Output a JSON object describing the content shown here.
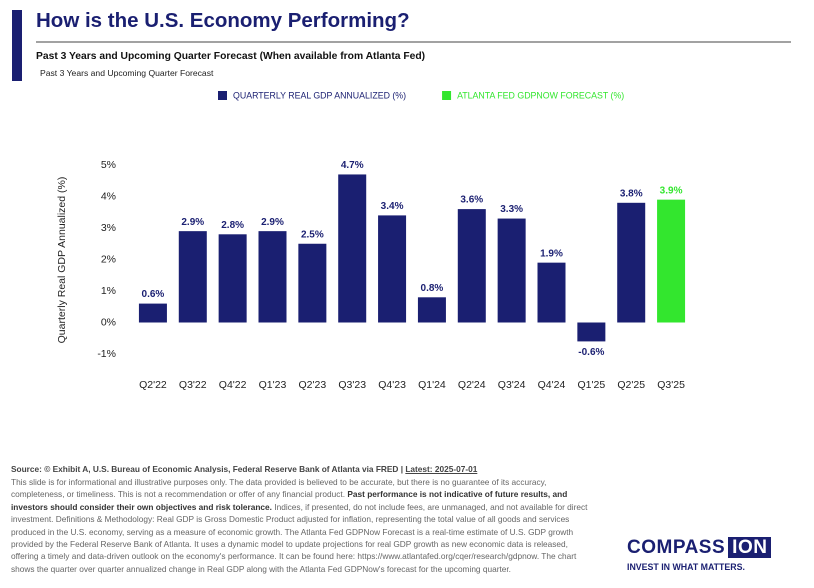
{
  "header": {
    "title": "How is the U.S. Economy Performing?",
    "subtitle": "Past 3 Years and Upcoming Quarter Forecast (When available from Atlanta Fed)",
    "note": "Past 3 Years and Upcoming Quarter Forecast"
  },
  "chart_data": {
    "type": "bar",
    "y_label": "Quarterly Real GDP Annualized (%)",
    "categories": [
      "Q2'22",
      "Q3'22",
      "Q4'22",
      "Q1'23",
      "Q2'23",
      "Q3'23",
      "Q4'23",
      "Q1'24",
      "Q2'24",
      "Q3'24",
      "Q4'24",
      "Q1'25",
      "Q2'25",
      "Q3'25"
    ],
    "series": [
      {
        "name": "QUARTERLY REAL GDP ANNUALIZED (%)",
        "color": "#1a1f71",
        "values": [
          0.6,
          2.9,
          2.8,
          2.9,
          2.5,
          4.7,
          3.4,
          0.8,
          3.6,
          3.3,
          1.9,
          -0.6,
          3.8,
          null
        ],
        "value_labels": [
          "0.6%",
          "2.9%",
          "2.8%",
          "2.9%",
          "2.5%",
          "4.7%",
          "3.4%",
          "0.8%",
          "3.6%",
          "3.3%",
          "1.9%",
          "-0.6%",
          "3.8%",
          null
        ]
      },
      {
        "name": "ATLANTA FED GDPNOW FORECAST (%)",
        "color": "#33e62e",
        "values": [
          null,
          null,
          null,
          null,
          null,
          null,
          null,
          null,
          null,
          null,
          null,
          null,
          null,
          3.9
        ],
        "value_labels": [
          null,
          null,
          null,
          null,
          null,
          null,
          null,
          null,
          null,
          null,
          null,
          null,
          null,
          "3.9%"
        ]
      }
    ],
    "ylim": [
      -1,
      5
    ],
    "yticks": [
      {
        "value": -1,
        "label": "-1%"
      },
      {
        "value": 0,
        "label": "0%"
      },
      {
        "value": 1,
        "label": "1%"
      },
      {
        "value": 2,
        "label": "2%"
      },
      {
        "value": 3,
        "label": "3%"
      },
      {
        "value": 4,
        "label": "4%"
      },
      {
        "value": 5,
        "label": "5%"
      }
    ],
    "grid": false,
    "legend": "top"
  },
  "footer": {
    "source": "Source: © Exhibit A, U.S. Bureau of Economic Analysis, Federal Reserve Bank of Atlanta via FRED |",
    "latest": "Latest: 2025-07-01",
    "disclaimer": [
      "This slide is for informational and illustrative purposes only. The data provided is believed to be accurate, but there is no guarantee of its accuracy, completeness, or timeliness. This is not a recommendation or offer of any financial product.",
      "Past performance is not indicative of future results, and investors should consider their own objectives and risk tolerance.",
      "Indices, if presented, do not include fees, are unmanaged, and not available for direct investment. Definitions & Methodology: Real GDP is Gross Domestic Product adjusted for inflation, representing the total value of all goods and services produced in the U.S. economy, serving as a measure of economic growth. The Atlanta Fed GDPNow Forecast is a real-time estimate of U.S. GDP growth provided by the Federal Reserve Bank of Atlanta. It uses a dynamic model to update projections for real GDP growth as new economic data is released, offering a timely and data-driven outlook on the economy's performance. It can be found here: https://www.atlantafed.org/cqer/research/gdpnow. The chart shows the quarter over quarter annualized change in Real GDP along with the Atlanta Fed GDPNow's forecast for the upcoming quarter."
    ]
  },
  "logo": {
    "name": "COMPASS",
    "highlight": "ION",
    "tagline": "INVEST IN WHAT MATTERS."
  }
}
